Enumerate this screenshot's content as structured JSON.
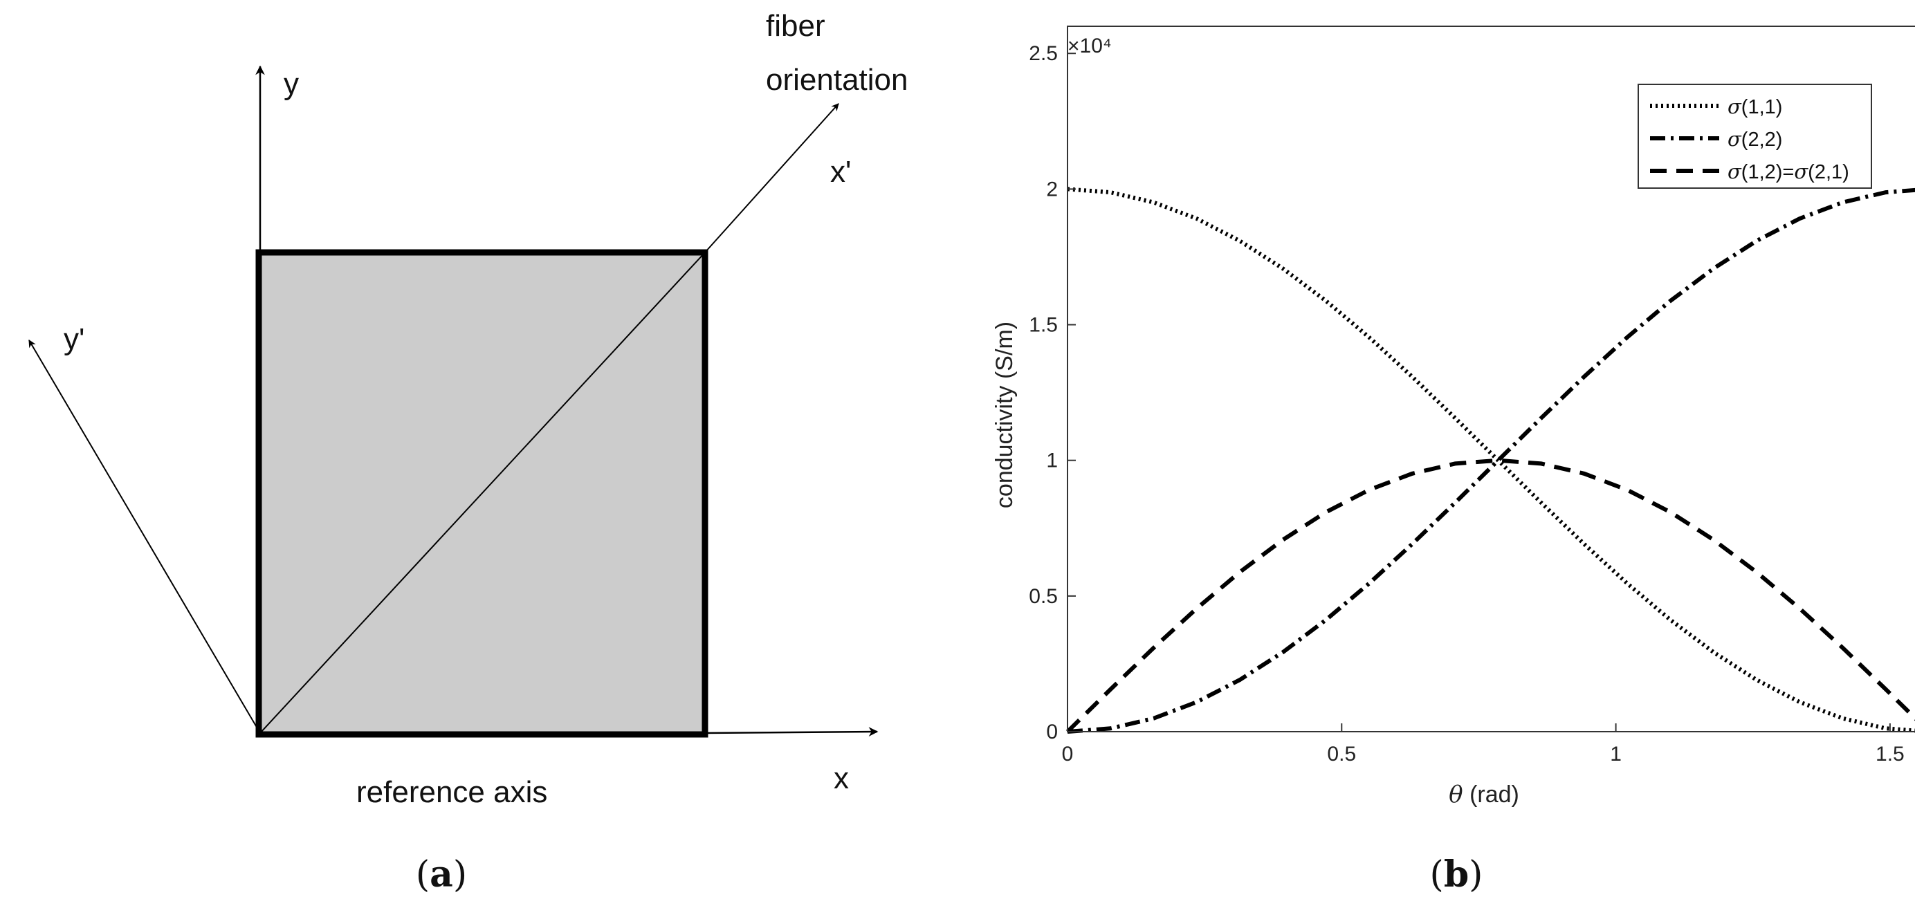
{
  "panel_a": {
    "caption_open": "(",
    "caption_letter": "a",
    "caption_close": ")",
    "axis_y": "y",
    "axis_x": "x",
    "axis_y_prime": "y'",
    "axis_x_prime": "x'",
    "fiber_line1": "fiber",
    "fiber_line2": "orientation",
    "reference_axis": "reference axis",
    "colors": {
      "fill": "#cccccc",
      "stroke": "#000000"
    }
  },
  "panel_b": {
    "caption_open": "(",
    "caption_letter": "b",
    "caption_close": ")",
    "exponent_label": "×10⁴",
    "chart_data": {
      "type": "line",
      "xlabel_symbol": "θ",
      "xlabel_rest": " (rad)",
      "ylabel": "conductivity (S/m)",
      "xlim": [
        0,
        1.5708
      ],
      "ylim": [
        0,
        2.6
      ],
      "scale_factor": 10000,
      "x_ticks": [
        0,
        0.5,
        1,
        1.5
      ],
      "x_tick_labels": [
        "0",
        "0.5",
        "1",
        "1.5"
      ],
      "y_ticks": [
        0,
        0.5,
        1,
        1.5,
        2,
        2.5
      ],
      "y_tick_labels": [
        "0",
        "0.5",
        "1",
        "1.5",
        "2",
        "2.5"
      ],
      "grid": false,
      "legend_position": "top-right",
      "x": [
        0,
        0.0785,
        0.1571,
        0.2356,
        0.3142,
        0.3927,
        0.4712,
        0.5498,
        0.6283,
        0.7069,
        0.7854,
        0.8639,
        0.9425,
        1.021,
        1.0996,
        1.1781,
        1.2566,
        1.3352,
        1.4137,
        1.4923,
        1.5708
      ],
      "series": [
        {
          "name_sym": "σ",
          "name_rest": "(1,1)",
          "dash": "dotted",
          "values": [
            2.0,
            1.988,
            1.951,
            1.891,
            1.809,
            1.707,
            1.588,
            1.454,
            1.309,
            1.156,
            1.0,
            0.844,
            0.691,
            0.546,
            0.412,
            0.293,
            0.191,
            0.109,
            0.049,
            0.012,
            0.0
          ]
        },
        {
          "name_sym": "σ",
          "name_rest": "(2,2)",
          "dash": "dashdot",
          "values": [
            0.0,
            0.012,
            0.049,
            0.109,
            0.191,
            0.293,
            0.412,
            0.546,
            0.691,
            0.844,
            1.0,
            1.156,
            1.309,
            1.454,
            1.588,
            1.707,
            1.809,
            1.891,
            1.951,
            1.988,
            2.0
          ]
        },
        {
          "name_sym": "σ",
          "name_rest": "(1,2)=",
          "name_sym2": "σ",
          "name_rest2": "(2,1)",
          "dash": "dashed",
          "values": [
            0.0,
            0.156,
            0.309,
            0.454,
            0.588,
            0.707,
            0.809,
            0.891,
            0.951,
            0.988,
            1.0,
            0.988,
            0.951,
            0.891,
            0.809,
            0.707,
            0.588,
            0.454,
            0.309,
            0.156,
            0.0
          ]
        }
      ]
    }
  }
}
